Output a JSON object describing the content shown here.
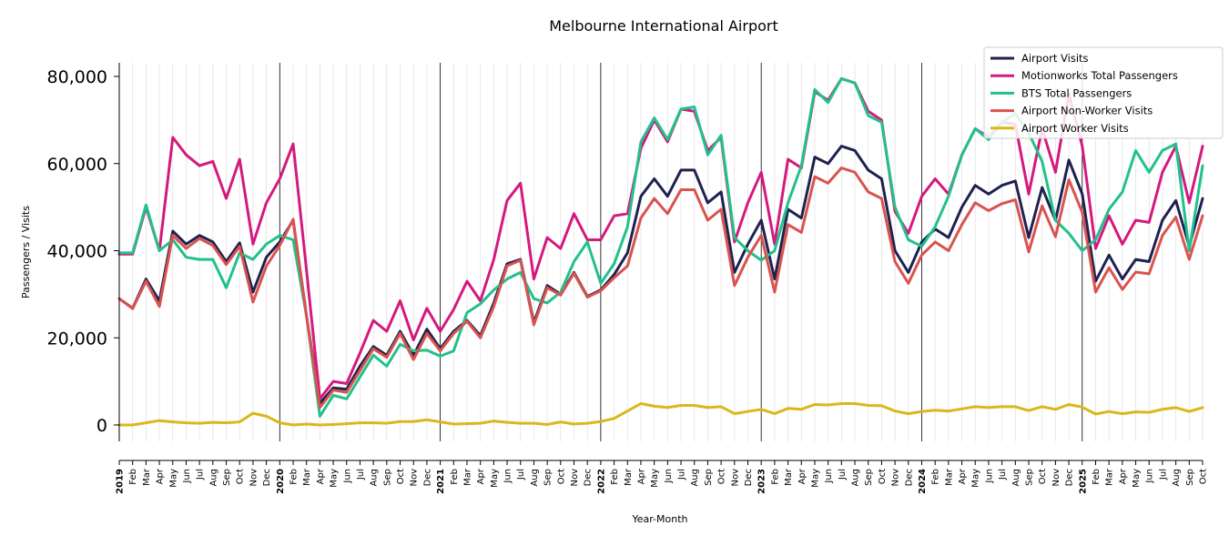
{
  "chart_data": {
    "type": "line",
    "title": "Melbourne International Airport",
    "xlabel": "Year-Month",
    "ylabel": "Passengers / Visits",
    "ylim": [
      -4000,
      83500
    ],
    "yticks": [
      0,
      20000,
      40000,
      60000,
      80000
    ],
    "ytick_labels": [
      "0",
      "20,000",
      "40,000",
      "60,000",
      "80,000"
    ],
    "grid": "vertical monthly lines, dark lines at each January",
    "legend_position": "top-right",
    "x": [
      "2019",
      "Feb",
      "Mar",
      "Apr",
      "May",
      "Jun",
      "Jul",
      "Aug",
      "Sep",
      "Oct",
      "Nov",
      "Dec",
      "2020",
      "Feb",
      "Mar",
      "Apr",
      "May",
      "Jun",
      "Jul",
      "Aug",
      "Sep",
      "Oct",
      "Nov",
      "Dec",
      "2021",
      "Feb",
      "Mar",
      "Apr",
      "May",
      "Jun",
      "Jul",
      "Aug",
      "Sep",
      "Oct",
      "Nov",
      "Dec",
      "2022",
      "Feb",
      "Mar",
      "Apr",
      "May",
      "Jun",
      "Jul",
      "Aug",
      "Sep",
      "Oct",
      "Nov",
      "Dec",
      "2023",
      "Feb",
      "Mar",
      "Apr",
      "May",
      "Jun",
      "Jul",
      "Aug",
      "Sep",
      "Oct",
      "Nov",
      "Dec",
      "2024",
      "Feb",
      "Mar",
      "Apr",
      "May",
      "Jun",
      "Jul",
      "Aug",
      "Sep",
      "Oct",
      "Nov",
      "Dec",
      "2025",
      "Feb",
      "Mar",
      "Apr",
      "May",
      "Jun",
      "Jul",
      "Aug",
      "Sep",
      "Oct"
    ],
    "series": [
      {
        "name": "Airport Visits",
        "color": "#1f2150",
        "values": [
          29000,
          26800,
          33500,
          28500,
          44500,
          41500,
          43500,
          42000,
          37500,
          41800,
          30500,
          38500,
          42000,
          47000,
          25000,
          5000,
          8500,
          8200,
          13500,
          18000,
          16000,
          21500,
          16000,
          22000,
          17500,
          21500,
          24000,
          20500,
          28000,
          37000,
          38000,
          23500,
          32000,
          30000,
          35000,
          29500,
          31000,
          34500,
          39500,
          52500,
          56500,
          52500,
          58500,
          58500,
          51000,
          53500,
          35000,
          41500,
          47000,
          33500,
          49500,
          47500,
          61500,
          60000,
          64000,
          63000,
          58500,
          56500,
          40000,
          35000,
          42000,
          45000,
          43000,
          50000,
          55000,
          53000,
          55000,
          56000,
          43000,
          54500,
          47000,
          60800,
          53000,
          33000,
          39000,
          33500,
          38000,
          37500,
          47000,
          51500,
          41000,
          52000
        ]
      },
      {
        "name": "Motionworks Total Passengers",
        "color": "#d4197f",
        "values": [
          39200,
          39200,
          50000,
          40000,
          66000,
          62000,
          59500,
          60500,
          52000,
          61000,
          41500,
          51000,
          56500,
          64500,
          35500,
          6000,
          10000,
          9500,
          16500,
          24000,
          21500,
          28500,
          19500,
          26800,
          21500,
          26500,
          33000,
          28500,
          38000,
          51500,
          55500,
          33500,
          43000,
          40500,
          48500,
          42500,
          42500,
          48000,
          48500,
          63500,
          70000,
          65000,
          72500,
          72000,
          63000,
          66000,
          42000,
          51000,
          58000,
          41500,
          61000,
          59000,
          76500,
          74500,
          79500,
          78500,
          72000,
          70000,
          49000,
          44000,
          52500,
          56500,
          53000,
          62000,
          68000,
          66000,
          69500,
          69000,
          53000,
          68000,
          58000,
          76000,
          64000,
          40500,
          48000,
          41500,
          47000,
          46500,
          58000,
          64000,
          51000,
          64000
        ]
      },
      {
        "name": "BTS Total Passengers",
        "color": "#21c18c",
        "values": [
          39500,
          39500,
          50500,
          40000,
          42500,
          38500,
          38000,
          38000,
          31500,
          39500,
          38000,
          41500,
          43500,
          42500,
          25000,
          2000,
          6800,
          6000,
          11000,
          16000,
          13500,
          18500,
          17000,
          17200,
          15800,
          17000,
          25800,
          27800,
          31000,
          33500,
          35000,
          29000,
          28000,
          30500,
          37500,
          42000,
          32500,
          37000,
          45500,
          65000,
          70500,
          65500,
          72500,
          73000,
          62000,
          66500,
          43000,
          40000,
          37800,
          40000,
          51000,
          59500,
          77000,
          74000,
          79500,
          78500,
          71000,
          69500,
          50000,
          42500,
          41000,
          45500,
          52500,
          62000,
          68000,
          65500,
          69500,
          71500,
          67000,
          60500,
          47000,
          44000,
          40000,
          42500,
          49500,
          53500,
          63000,
          58000,
          63000,
          64500,
          40000,
          59500
        ]
      },
      {
        "name": "Airport Non-Worker Visits",
        "color": "#d9534f",
        "values": [
          29000,
          26700,
          33000,
          27200,
          43500,
          40500,
          42800,
          41200,
          36800,
          41000,
          28200,
          36500,
          41200,
          47200,
          25000,
          4000,
          8000,
          7500,
          12500,
          17500,
          15500,
          21000,
          15000,
          21000,
          17000,
          21000,
          23800,
          20000,
          27200,
          36500,
          37800,
          23000,
          31500,
          29800,
          34800,
          29300,
          30800,
          33800,
          36500,
          47500,
          52000,
          48500,
          54000,
          54000,
          47000,
          49500,
          32000,
          38500,
          43500,
          30500,
          46000,
          44200,
          57000,
          55500,
          59000,
          58000,
          53500,
          52000,
          37500,
          32500,
          39000,
          42000,
          40000,
          46000,
          51000,
          49200,
          50800,
          51700,
          39700,
          50300,
          43200,
          56300,
          48800,
          30500,
          36100,
          31100,
          35100,
          34700,
          43500,
          47700,
          38000,
          48000
        ]
      },
      {
        "name": "Airport Worker Visits",
        "color": "#dab81a",
        "values": [
          0,
          0,
          500,
          1000,
          700,
          500,
          400,
          600,
          500,
          700,
          2700,
          2000,
          500,
          0,
          200,
          0,
          100,
          300,
          500,
          500,
          400,
          800,
          800,
          1200,
          700,
          200,
          300,
          400,
          900,
          600,
          400,
          400,
          100,
          700,
          200,
          400,
          800,
          1500,
          3200,
          4900,
          4300,
          4000,
          4500,
          4500,
          4000,
          4200,
          2600,
          3100,
          3600,
          2600,
          3800,
          3600,
          4700,
          4600,
          4900,
          4900,
          4500,
          4400,
          3200,
          2600,
          3100,
          3400,
          3200,
          3700,
          4200,
          4000,
          4200,
          4200,
          3300,
          4200,
          3600,
          4700,
          4100,
          2500,
          3100,
          2600,
          3000,
          2900,
          3600,
          4000,
          3100,
          4000
        ]
      }
    ]
  }
}
